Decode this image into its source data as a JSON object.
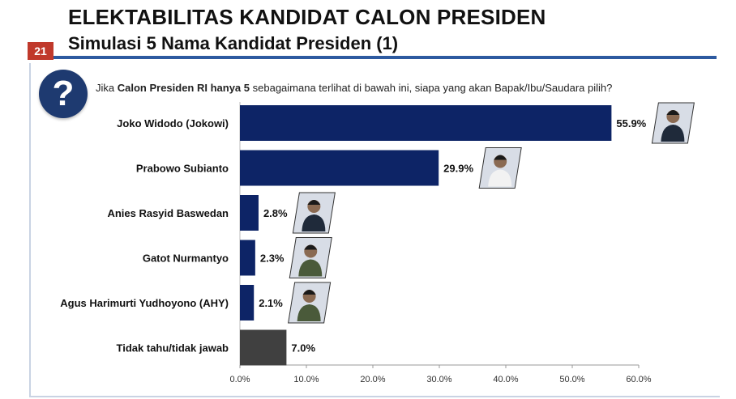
{
  "header": {
    "title": "ELEKTABILITAS KANDIDAT CALON PRESIDEN",
    "subtitle": "Simulasi 5 Nama Kandidat Presiden (1)",
    "page_number": "21"
  },
  "question": {
    "prefix": "Jika ",
    "bold": "Calon Presiden RI hanya 5",
    "suffix": " sebagaimana terlihat di bawah ini, siapa yang akan Bapak/Ibu/Saudara pilih?"
  },
  "colors": {
    "bar_primary": "#0d2466",
    "bar_unknown": "#404040",
    "accent_red": "#c0392b",
    "rule_blue": "#2d5aa0",
    "question_circle": "#1e3a70"
  },
  "chart_data": {
    "type": "bar",
    "orientation": "horizontal",
    "categories": [
      "Joko Widodo (Jokowi)",
      "Prabowo Subianto",
      "Anies Rasyid Baswedan",
      "Gatot Nurmantyo",
      "Agus Harimurti Yudhoyono (AHY)",
      "Tidak tahu/tidak jawab"
    ],
    "values": [
      55.9,
      29.9,
      2.8,
      2.3,
      2.1,
      7.0
    ],
    "value_labels": [
      "55.9%",
      "29.9%",
      "2.8%",
      "2.3%",
      "2.1%",
      "7.0%"
    ],
    "has_photo": [
      true,
      true,
      true,
      true,
      true,
      false
    ],
    "xlim": [
      0,
      60
    ],
    "ticks": [
      "0.0%",
      "10.0%",
      "20.0%",
      "30.0%",
      "40.0%",
      "50.0%",
      "60.0%"
    ],
    "xlabel": "",
    "ylabel": "",
    "grid": false,
    "legend": "none"
  }
}
